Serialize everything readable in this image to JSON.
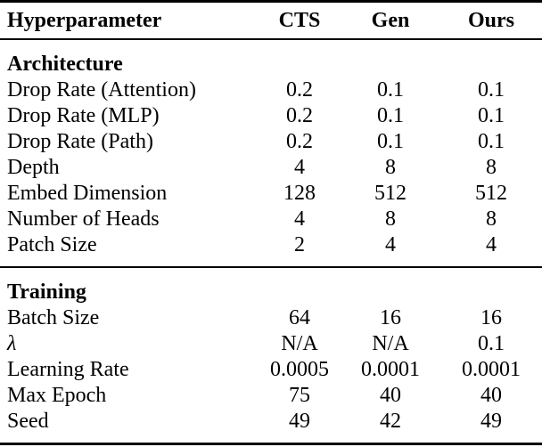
{
  "colors": {
    "background": "#ffffff",
    "text": "#000000",
    "rule": "#000000"
  },
  "table": {
    "columns": [
      "Hyperparameter",
      "CTS",
      "Gen",
      "Ours"
    ],
    "sections": [
      {
        "title": "Architecture",
        "rows": [
          {
            "label": "Drop Rate (Attention)",
            "values": [
              "0.2",
              "0.1",
              "0.1"
            ]
          },
          {
            "label": "Drop Rate (MLP)",
            "values": [
              "0.2",
              "0.1",
              "0.1"
            ]
          },
          {
            "label": "Drop Rate (Path)",
            "values": [
              "0.2",
              "0.1",
              "0.1"
            ]
          },
          {
            "label": "Depth",
            "values": [
              "4",
              "8",
              "8"
            ]
          },
          {
            "label": "Embed Dimension",
            "values": [
              "128",
              "512",
              "512"
            ]
          },
          {
            "label": "Number of Heads",
            "values": [
              "4",
              "8",
              "8"
            ]
          },
          {
            "label": "Patch Size",
            "values": [
              "2",
              "4",
              "4"
            ]
          }
        ]
      },
      {
        "title": "Training",
        "rows": [
          {
            "label": "Batch Size",
            "values": [
              "64",
              "16",
              "16"
            ]
          },
          {
            "label": "λ",
            "values": [
              "N/A",
              "N/A",
              "0.1"
            ]
          },
          {
            "label": "Learning Rate",
            "values": [
              "0.0005",
              "0.0001",
              "0.0001"
            ]
          },
          {
            "label": "Max Epoch",
            "values": [
              "75",
              "40",
              "40"
            ]
          },
          {
            "label": "Seed",
            "values": [
              "49",
              "42",
              "49"
            ]
          }
        ]
      }
    ]
  }
}
